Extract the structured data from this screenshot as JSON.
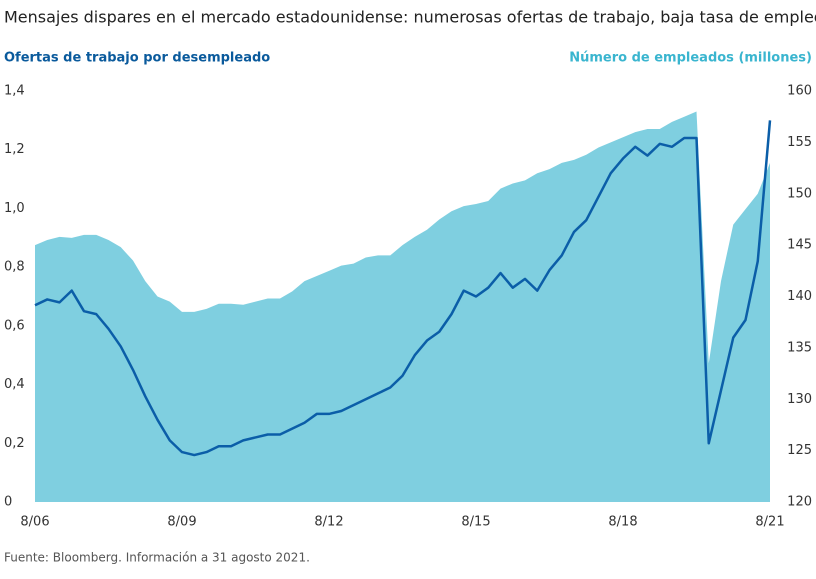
{
  "chart_data": {
    "type": "line",
    "title": "Mensajes dispares en el mercado estadounidense: numerosas ofertas de trabajo, baja tasa de empleo",
    "y_label": "Ofertas de trabajo por desempleado",
    "y2_label": "Número de empleados (millones)",
    "footnote": "Fuente: Bloomberg. Información a 31 agosto 2021.",
    "categories": [
      "8/06",
      null,
      null,
      null,
      null,
      null,
      null,
      null,
      null,
      null,
      null,
      null,
      "8/09",
      null,
      null,
      null,
      null,
      null,
      null,
      null,
      null,
      null,
      null,
      null,
      "8/12",
      null,
      null,
      null,
      null,
      null,
      null,
      null,
      null,
      null,
      null,
      null,
      "8/15",
      null,
      null,
      null,
      null,
      null,
      null,
      null,
      null,
      null,
      null,
      null,
      "8/18",
      null,
      null,
      null,
      null,
      null,
      null,
      null,
      null,
      null,
      null,
      null,
      "8/21"
    ],
    "series": [
      {
        "name": "Ofertas de trabajo por desempleado",
        "type": "line",
        "axis": "y",
        "color": "#0b5ea8",
        "values": [
          0.67,
          0.69,
          0.68,
          0.72,
          0.65,
          0.64,
          0.59,
          0.53,
          0.45,
          0.36,
          0.28,
          0.21,
          0.17,
          0.16,
          0.17,
          0.19,
          0.19,
          0.21,
          0.22,
          0.23,
          0.23,
          0.25,
          0.27,
          0.3,
          0.3,
          0.31,
          0.33,
          0.35,
          0.37,
          0.39,
          0.43,
          0.5,
          0.55,
          0.58,
          0.64,
          0.72,
          0.7,
          0.73,
          0.78,
          0.73,
          0.76,
          0.72,
          0.79,
          0.84,
          0.92,
          0.96,
          1.04,
          1.12,
          1.17,
          1.21,
          1.18,
          1.22,
          1.21,
          1.24,
          1.24,
          0.2,
          0.38,
          0.56,
          0.62,
          0.82,
          1.3
        ]
      },
      {
        "name": "Número de empleados (millones)",
        "type": "area",
        "axis": "y2",
        "color": "#7fcfe0",
        "values": [
          145.0,
          145.5,
          145.8,
          145.7,
          146.0,
          146.0,
          145.5,
          144.8,
          143.5,
          141.5,
          140.0,
          139.5,
          138.5,
          138.5,
          138.8,
          139.3,
          139.3,
          139.2,
          139.5,
          139.8,
          139.8,
          140.5,
          141.5,
          142.0,
          142.5,
          143.0,
          143.2,
          143.8,
          144.0,
          144.0,
          145.0,
          145.8,
          146.5,
          147.5,
          148.3,
          148.8,
          149.0,
          149.3,
          150.5,
          151.0,
          151.3,
          152.0,
          152.4,
          153.0,
          153.3,
          153.8,
          154.5,
          155.0,
          155.5,
          156.0,
          156.3,
          156.3,
          157.0,
          157.5,
          158.0,
          133.5,
          141.5,
          147.0,
          148.5,
          150.0,
          153.0
        ]
      }
    ],
    "ylim": [
      0,
      1.4
    ],
    "yticks": [
      0,
      {
        "value": 0.2,
        "label": "0,2"
      },
      {
        "value": 0.4,
        "label": "0,4"
      },
      {
        "value": 0.6,
        "label": "0,6"
      },
      {
        "value": 0.8,
        "label": "0,8"
      },
      {
        "value": 1.0,
        "label": "1,0"
      },
      {
        "value": 1.2,
        "label": "1,2"
      },
      {
        "value": 1.4,
        "label": "1,4"
      }
    ],
    "y2lim": [
      120,
      160
    ],
    "y2ticks": [
      120,
      125,
      130,
      135,
      140,
      145,
      150,
      155,
      160
    ]
  }
}
